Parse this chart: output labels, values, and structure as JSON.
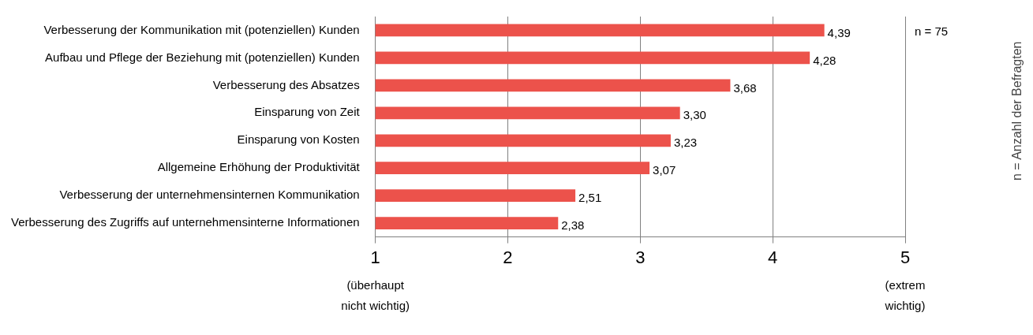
{
  "chart_data": {
    "type": "bar",
    "orientation": "horizontal",
    "categories": [
      "Verbesserung der Kommunikation mit (potenziellen) Kunden",
      "Aufbau und Pflege der Beziehung mit (potenziellen) Kunden",
      "Verbesserung des Absatzes",
      "Einsparung von Zeit",
      "Einsparung von Kosten",
      "Allgemeine Erhöhung der Produktivität",
      "Verbesserung der unternehmensinternen Kommunikation",
      "Verbesserung des Zugriffs auf unternehmensinterne Informationen"
    ],
    "values": [
      4.39,
      4.28,
      3.68,
      3.3,
      3.23,
      3.07,
      2.51,
      2.38
    ],
    "value_labels": [
      "4,39",
      "4,28",
      "3,68",
      "3,30",
      "3,23",
      "3,07",
      "2,51",
      "2,38"
    ],
    "color": "#ec524b",
    "xlim": [
      1,
      5
    ],
    "xticks": [
      1,
      2,
      3,
      4,
      5
    ],
    "grid": "x",
    "legend": false,
    "annotations": [
      "(überhaupt nicht wichtig)",
      "(extrem wichtig)",
      "n = 75",
      "n = Anzahl der Befragten"
    ]
  }
}
